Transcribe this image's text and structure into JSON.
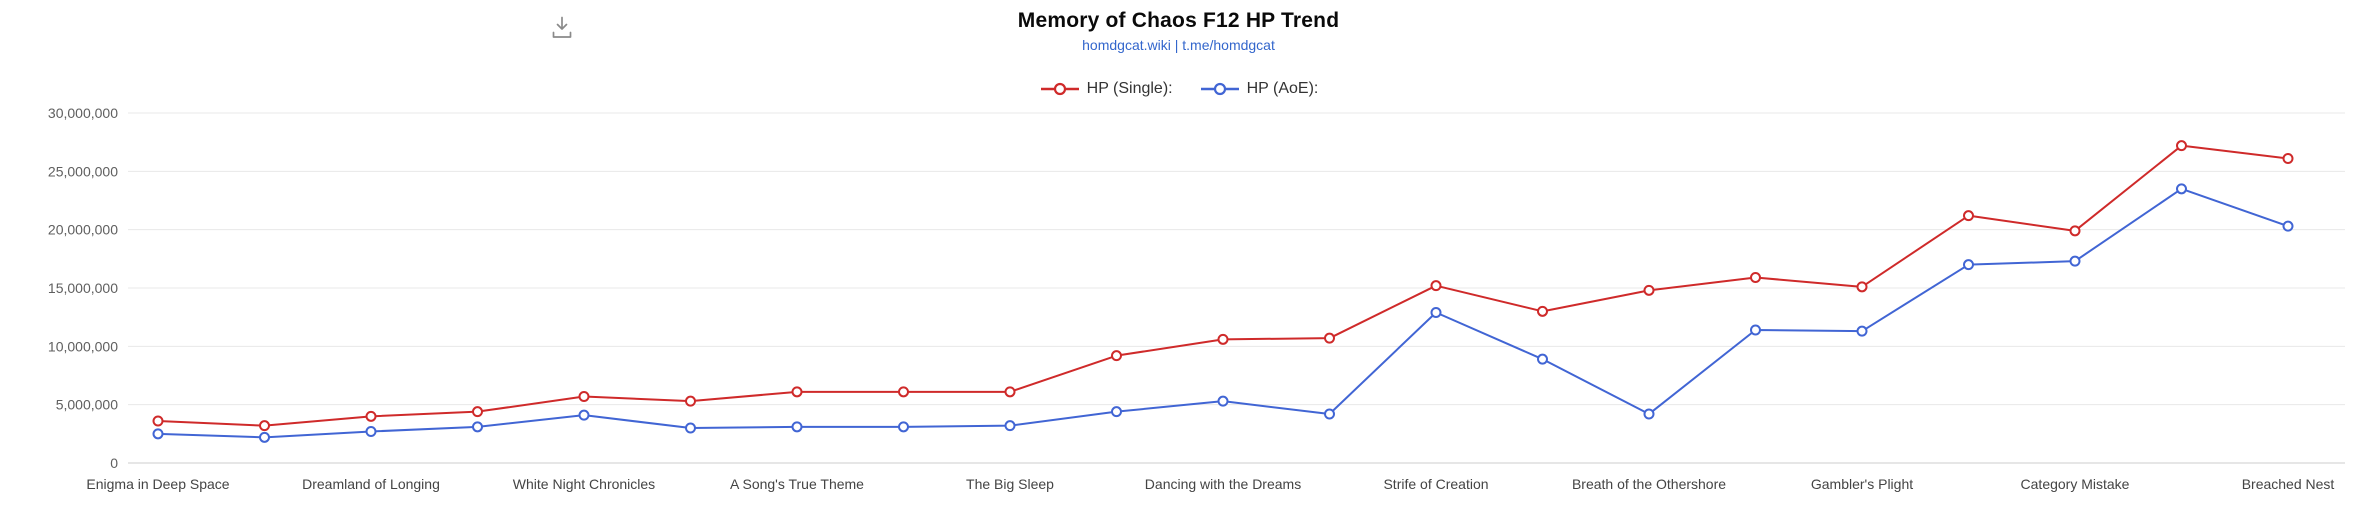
{
  "header": {
    "title": "Memory of Chaos F12 HP Trend",
    "subtitle": "homdgcat.wiki | t.me/homdgcat"
  },
  "icons": {
    "download-icon": "arrow-down-into-tray"
  },
  "colors": {
    "hp_single": "#cf2a2a",
    "hp_aoe": "#4165d4",
    "link": "#3366cc",
    "gridline": "#e8e8e8",
    "axis_line": "#cccccc",
    "axis_label": "#5f5f5f"
  },
  "legend": {
    "items": [
      {
        "label": "HP (Single):",
        "color": "#cf2a2a"
      },
      {
        "label": "HP (AoE):",
        "color": "#4165d4"
      }
    ]
  },
  "chart_data": {
    "type": "line",
    "title": "Memory of Chaos F12 HP Trend",
    "xlabel": "",
    "ylabel": "",
    "ylim": [
      0,
      30000000
    ],
    "ytick_step": 5000000,
    "grid": true,
    "legend_position": "top-center",
    "categories": [
      "Enigma in Deep Space",
      "",
      "Dreamland of Longing",
      "",
      "White Night Chronicles",
      "",
      "A Song's True Theme",
      "",
      "The Big Sleep",
      "",
      "Dancing with the Dreams",
      "",
      "Strife of Creation",
      "",
      "Breath of the Othershore",
      "",
      "Gambler's Plight",
      "",
      "Category Mistake",
      "",
      "Breached Nest"
    ],
    "series": [
      {
        "name": "HP (Single):",
        "color": "#cf2a2a",
        "values": [
          3600000,
          3200000,
          4000000,
          4400000,
          5700000,
          5300000,
          6100000,
          6100000,
          6100000,
          9200000,
          10600000,
          10700000,
          15200000,
          13000000,
          14800000,
          15900000,
          15100000,
          21200000,
          19900000,
          27200000,
          26100000
        ]
      },
      {
        "name": "HP (AoE):",
        "color": "#4165d4",
        "values": [
          2500000,
          2200000,
          2700000,
          3100000,
          4100000,
          3000000,
          3100000,
          3100000,
          3200000,
          4400000,
          5300000,
          4200000,
          12900000,
          8900000,
          4200000,
          11400000,
          11300000,
          17000000,
          17300000,
          23500000,
          20300000
        ]
      }
    ]
  }
}
